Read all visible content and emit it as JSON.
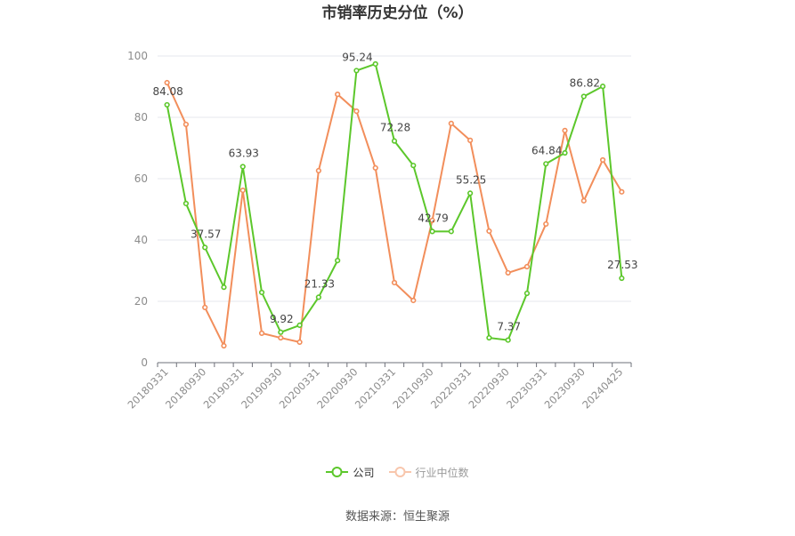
{
  "chart_data": {
    "type": "line",
    "title": "市销率历史分位（%）",
    "categories": [
      "20180331",
      "",
      "20180930",
      "",
      "20190331",
      "",
      "20190930",
      "",
      "20200331",
      "",
      "20200930",
      "",
      "20210331",
      "",
      "20210930",
      "",
      "20220331",
      "",
      "20220930",
      "",
      "20230331",
      "",
      "20230930",
      "",
      "20240425"
    ],
    "ylim": [
      0,
      100
    ],
    "yticks": [
      0,
      20,
      40,
      60,
      80,
      100
    ],
    "grid": true,
    "legend_position": "bottom",
    "series": [
      {
        "name": "公司",
        "color": "#5cc72b",
        "values": [
          84.08,
          51.9,
          37.57,
          24.6,
          63.93,
          22.9,
          9.92,
          12.2,
          21.33,
          33.3,
          95.24,
          97.4,
          72.28,
          64.3,
          42.79,
          42.8,
          55.25,
          8.1,
          7.37,
          22.6,
          64.84,
          68.4,
          86.82,
          90.1,
          27.53
        ],
        "data_labels": [
          "84.08",
          null,
          "37.57",
          null,
          "63.93",
          null,
          "9.92",
          null,
          "21.33",
          null,
          "95.24",
          null,
          "72.28",
          null,
          "42.79",
          null,
          "55.25",
          null,
          "7.37",
          null,
          "64.84",
          null,
          "86.82",
          null,
          "27.53"
        ]
      },
      {
        "name": "行业中位数",
        "color": "#f28e5b",
        "values": [
          91.3,
          77.7,
          18.0,
          5.5,
          56.2,
          9.6,
          8.1,
          6.7,
          62.6,
          87.5,
          82.0,
          63.5,
          26.1,
          20.3,
          46.4,
          78.0,
          72.5,
          42.9,
          29.3,
          31.3,
          45.2,
          75.7,
          52.8,
          66.1,
          55.7
        ]
      }
    ]
  },
  "source": "数据来源：恒生聚源"
}
